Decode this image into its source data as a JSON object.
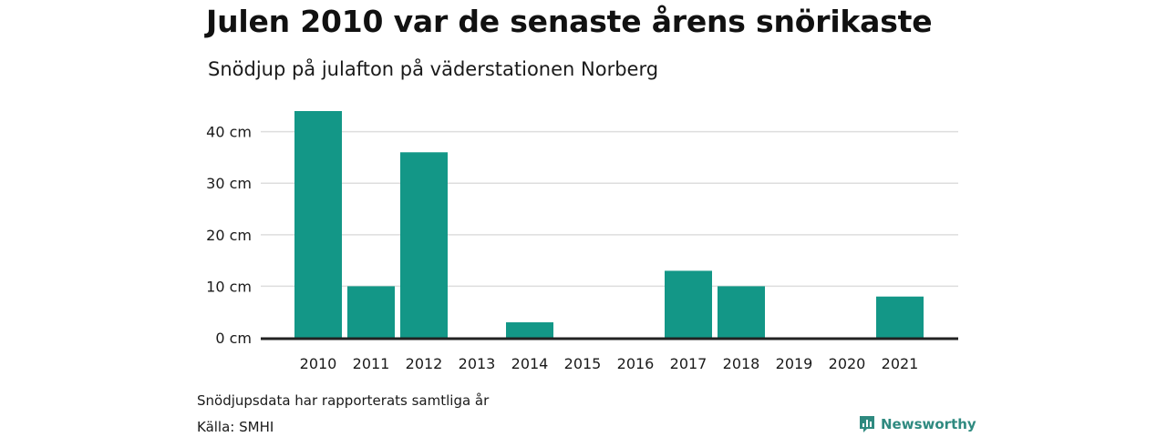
{
  "title": "Julen 2010 var de senaste årens snörikaste",
  "subtitle": "Snödjup på julafton på väderstationen Norberg",
  "note": "Snödjupsdata har rapporterats samtliga år",
  "source": "Källa: SMHI",
  "brand": {
    "name": "Newsworthy",
    "icon": "newsworthy-logo-icon"
  },
  "colors": {
    "bar": "#139787",
    "grid": "#dddddd",
    "axis": "#222222",
    "text": "#1a1a1a"
  },
  "chart_data": {
    "type": "bar",
    "title": "Julen 2010 var de senaste årens snörikaste",
    "subtitle": "Snödjup på julafton på väderstationen Norberg",
    "xlabel": "",
    "ylabel": "",
    "unit": "cm",
    "categories": [
      "2010",
      "2011",
      "2012",
      "2013",
      "2014",
      "2015",
      "2016",
      "2017",
      "2018",
      "2019",
      "2020",
      "2021"
    ],
    "values": [
      44,
      10,
      36,
      0,
      3,
      0,
      0,
      13,
      10,
      0,
      0,
      8
    ],
    "ylim": [
      0,
      44
    ],
    "yticks": [
      0,
      10,
      20,
      30,
      40
    ],
    "ytick_labels": [
      "0 cm",
      "10 cm",
      "20 cm",
      "30 cm",
      "40 cm"
    ],
    "grid": true,
    "legend": "none"
  }
}
